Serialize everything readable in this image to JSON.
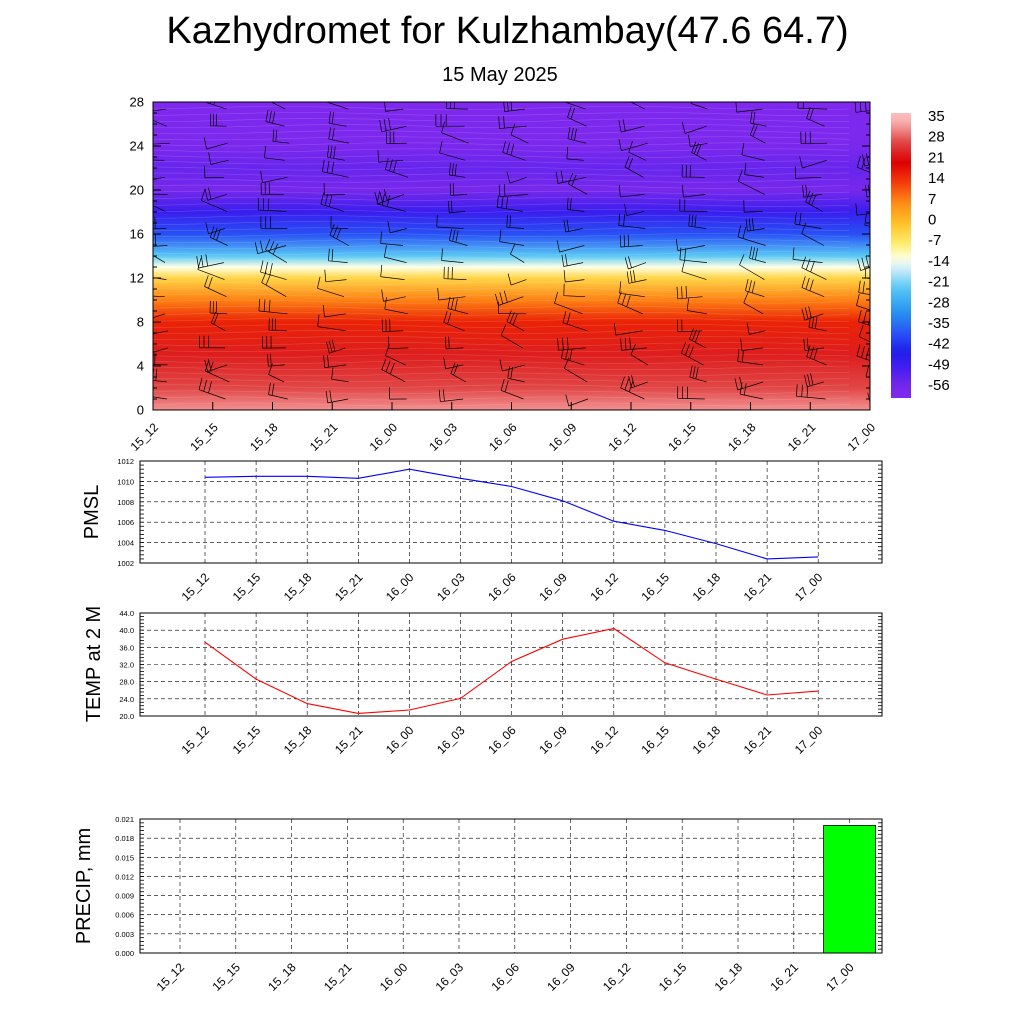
{
  "header": {
    "title": "Kazhydromet for Kulzhambay(47.6 64.7)",
    "subtitle": "15 May 2025"
  },
  "time_labels": [
    "15_12",
    "15_15",
    "15_18",
    "15_21",
    "16_00",
    "16_03",
    "16_06",
    "16_09",
    "16_12",
    "16_15",
    "16_18",
    "16_21",
    "17_00"
  ],
  "chart_data": [
    {
      "type": "heatmap",
      "title": "",
      "xlabel": "",
      "ylabel": "",
      "ylim": [
        0,
        28
      ],
      "y_ticks": [
        "0",
        "4",
        "8",
        "12",
        "16",
        "20",
        "24",
        "28"
      ],
      "colorbar_labels": [
        "35",
        "28",
        "21",
        "14",
        "7",
        "0",
        "-7",
        "-14",
        "-21",
        "-28",
        "-35",
        "-42",
        "-49",
        "-56"
      ],
      "colorbar_range": [
        -60,
        38
      ],
      "temperature_by_level": [
        {
          "level": 0,
          "value": 33
        },
        {
          "level": 2,
          "value": 28
        },
        {
          "level": 5,
          "value": 24
        },
        {
          "level": 8,
          "value": 17
        },
        {
          "level": 10,
          "value": 8
        },
        {
          "level": 12,
          "value": -3
        },
        {
          "level": 13,
          "value": -12
        },
        {
          "level": 14,
          "value": -22
        },
        {
          "level": 16,
          "value": -38
        },
        {
          "level": 18,
          "value": -48
        },
        {
          "level": 20,
          "value": -56
        },
        {
          "level": 22,
          "value": -54
        },
        {
          "level": 24,
          "value": -58
        },
        {
          "level": 28,
          "value": -60
        }
      ],
      "wind_barbs": "present"
    },
    {
      "type": "line",
      "ylabel": "PMSL",
      "ylim": [
        1002,
        1012
      ],
      "y_ticks": [
        "1002",
        "1004",
        "1006",
        "1008",
        "1010",
        "1012"
      ],
      "x": [
        "15_12",
        "15_15",
        "15_18",
        "15_21",
        "16_00",
        "16_03",
        "16_06",
        "16_09",
        "16_12",
        "16_15",
        "16_18",
        "16_21",
        "17_00"
      ],
      "series": [
        {
          "values": [
            1010.4,
            1010.5,
            1010.5,
            1010.3,
            1011.2,
            1010.3,
            1009.5,
            1008.1,
            1006.1,
            1005.2,
            1003.9,
            1002.4,
            1002.6
          ],
          "color": "#0000ff"
        }
      ]
    },
    {
      "type": "line",
      "ylabel": "TEMP at 2 M",
      "ylim": [
        20,
        44
      ],
      "y_ticks": [
        "20.0",
        "24.0",
        "28.0",
        "32.0",
        "36.0",
        "40.0",
        "44.0"
      ],
      "x": [
        "15_12",
        "15_15",
        "15_18",
        "15_21",
        "16_00",
        "16_03",
        "16_06",
        "16_09",
        "16_12",
        "16_15",
        "16_18",
        "16_21",
        "17_00"
      ],
      "series": [
        {
          "values": [
            37.2,
            28.6,
            22.9,
            20.6,
            21.4,
            24.1,
            32.7,
            37.9,
            40.4,
            32.4,
            28.6,
            24.9,
            25.8
          ],
          "color": "#ff0000"
        }
      ]
    },
    {
      "type": "bar",
      "ylabel": "PRECIP, mm",
      "ylim": [
        0,
        0.021
      ],
      "y_ticks": [
        "0.000",
        "0.003",
        "0.006",
        "0.009",
        "0.012",
        "0.015",
        "0.018",
        "0.021"
      ],
      "categories": [
        "15_12",
        "15_15",
        "15_18",
        "15_21",
        "16_00",
        "16_03",
        "16_06",
        "16_09",
        "16_12",
        "16_15",
        "16_18",
        "16_21",
        "17_00"
      ],
      "values": [
        0,
        0,
        0,
        0,
        0,
        0,
        0,
        0,
        0,
        0,
        0,
        0,
        0.02
      ],
      "color": "#00ff00"
    }
  ],
  "colors": {
    "pmsl_line": "#0000ff",
    "temp_line": "#ff0000",
    "precip_bar": "#00ff00"
  }
}
